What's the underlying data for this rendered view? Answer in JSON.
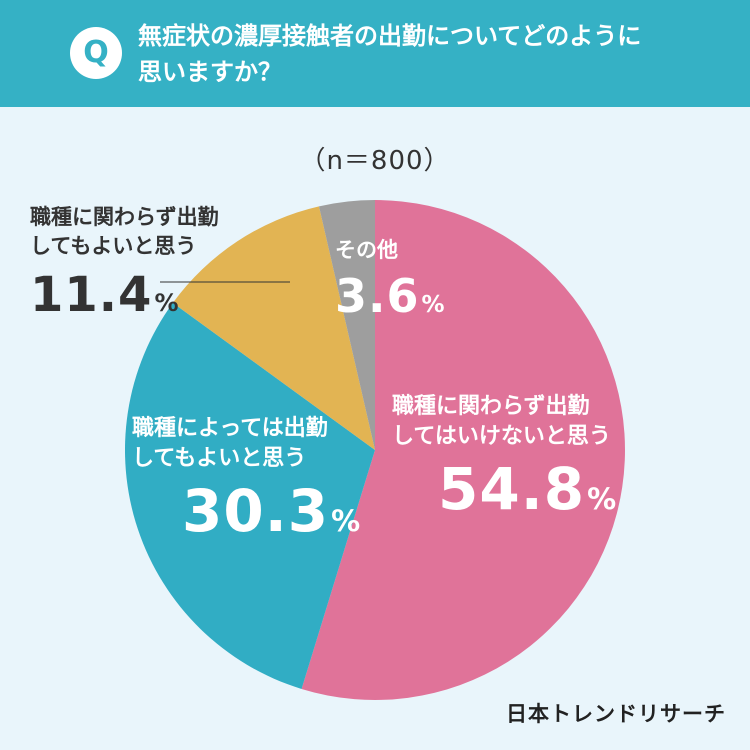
{
  "header": {
    "badge": "Q",
    "question_line1": "無症状の濃厚接触者の出勤についてどのように",
    "question_line2": "思いますか？"
  },
  "sample_size": "（n＝800）",
  "brand": "日本トレンドリサーチ",
  "colors": {
    "header_bg": "#35b1c5",
    "slice_pink": "#e07399",
    "slice_teal": "#31adc4",
    "slice_gold": "#e2b453",
    "slice_gray": "#9e9e9e"
  },
  "chart_data": {
    "type": "pie",
    "title": "無症状の濃厚接触者の出勤についてどのように思いますか？",
    "n": 800,
    "start": "12 o'clock, clockwise",
    "slices": [
      {
        "label_line1": "職種に関わらず出勤",
        "label_line2": "してはいけないと思う",
        "value": 54.8,
        "value_text": "54.8",
        "color": "#e07399"
      },
      {
        "label_line1": "職種によっては出勤",
        "label_line2": "してもよいと思う",
        "value": 30.3,
        "value_text": "30.3",
        "color": "#31adc4"
      },
      {
        "label_line1": "職種に関わらず出勤",
        "label_line2": "してもよいと思う",
        "value": 11.4,
        "value_text": "11.4",
        "color": "#e2b453"
      },
      {
        "label_line1": "その他",
        "label_line2": "",
        "value": 3.6,
        "value_text": "3.6",
        "color": "#9e9e9e"
      }
    ],
    "percent_sign": "%"
  }
}
